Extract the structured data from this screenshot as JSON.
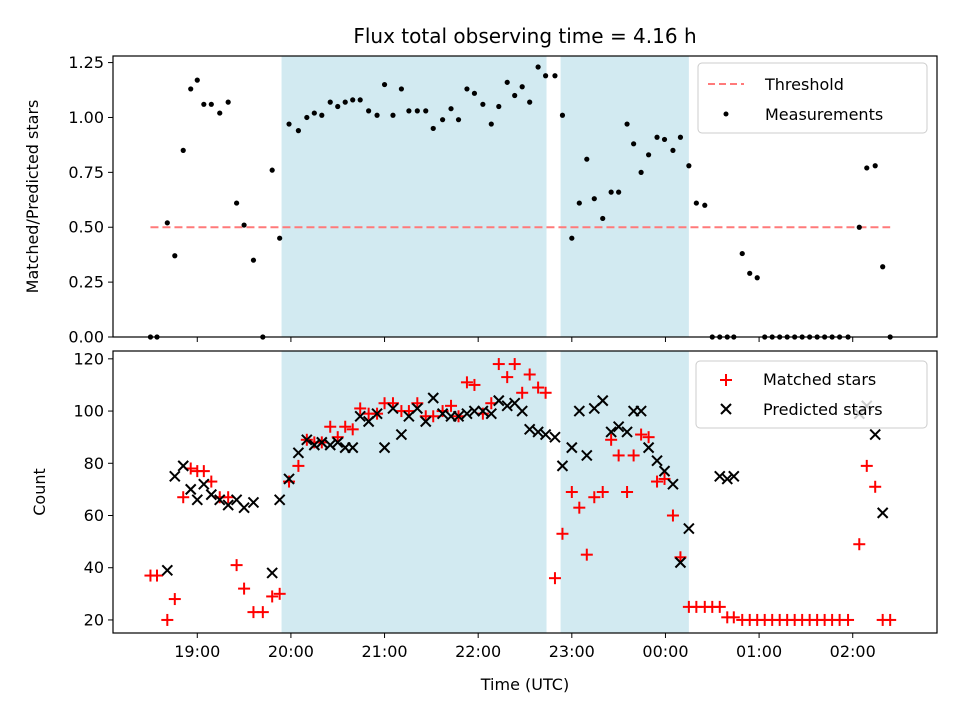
{
  "chart_data": {
    "title": "Flux total observing time = 4.16 h",
    "type": "scatter",
    "xlabel": "Time (UTC)",
    "x_unit": "hours since 18:00 UTC",
    "x_ticks": [
      1,
      2,
      3,
      4,
      5,
      6,
      7,
      8
    ],
    "x_tick_labels": [
      "19:00",
      "20:00",
      "21:00",
      "22:00",
      "23:00",
      "00:00",
      "01:00",
      "02:00"
    ],
    "xlim": [
      0.1,
      8.9
    ],
    "shaded_intervals": [
      [
        1.9,
        4.73
      ],
      [
        4.88,
        6.25
      ]
    ],
    "shade_color": "#add8e6",
    "panels": [
      {
        "ylabel": "Matched/Predicted stars",
        "ylim": [
          0,
          1.28
        ],
        "y_ticks": [
          0,
          0.25,
          0.5,
          0.75,
          1.0,
          1.25
        ],
        "y_tick_labels": [
          "0.00",
          "0.25",
          "0.50",
          "0.75",
          "1.00",
          "1.25"
        ],
        "legend": {
          "position": "top-right",
          "threshold_label": "Threshold",
          "measure_label": "Measurements"
        },
        "threshold": {
          "name": "Threshold",
          "value": 0.5,
          "x_range": [
            0.5,
            8.4
          ],
          "color": "#ff7a7a"
        },
        "series": [
          {
            "name": "Measurements",
            "marker": "dot",
            "color": "#000000",
            "x": [
              0.5,
              0.57,
              0.68,
              0.76,
              0.85,
              0.93,
              1.0,
              1.07,
              1.15,
              1.24,
              1.33,
              1.42,
              1.5,
              1.6,
              1.7,
              1.8,
              1.88,
              1.98,
              2.08,
              2.17,
              2.25,
              2.33,
              2.42,
              2.5,
              2.58,
              2.66,
              2.74,
              2.83,
              2.92,
              3.0,
              3.09,
              3.18,
              3.26,
              3.35,
              3.44,
              3.52,
              3.62,
              3.71,
              3.79,
              3.88,
              3.96,
              4.05,
              4.14,
              4.22,
              4.31,
              4.39,
              4.47,
              4.55,
              4.64,
              4.72,
              4.82,
              4.9,
              5.0,
              5.08,
              5.16,
              5.24,
              5.33,
              5.42,
              5.5,
              5.59,
              5.66,
              5.74,
              5.82,
              5.91,
              5.99,
              6.08,
              6.16,
              6.25,
              6.33,
              6.42,
              6.5,
              6.58,
              6.66,
              6.73,
              6.82,
              6.9,
              6.98,
              7.06,
              7.14,
              7.22,
              7.3,
              7.38,
              7.46,
              7.54,
              7.62,
              7.7,
              7.78,
              7.86,
              7.95,
              8.07,
              8.15,
              8.24,
              8.32,
              8.4
            ],
            "y": [
              0.0,
              0.0,
              0.52,
              0.37,
              0.85,
              1.13,
              1.17,
              1.06,
              1.06,
              1.02,
              1.07,
              0.61,
              0.51,
              0.35,
              0.0,
              0.76,
              0.45,
              0.97,
              0.94,
              1.0,
              1.02,
              1.01,
              1.07,
              1.05,
              1.07,
              1.08,
              1.08,
              1.03,
              1.01,
              1.15,
              1.01,
              1.13,
              1.03,
              1.03,
              1.03,
              0.95,
              0.99,
              1.04,
              0.99,
              1.13,
              1.11,
              1.06,
              0.97,
              1.05,
              1.16,
              1.1,
              1.14,
              1.07,
              1.23,
              1.19,
              1.19,
              1.01,
              0.45,
              0.61,
              0.81,
              0.63,
              0.54,
              0.66,
              0.66,
              0.97,
              0.88,
              0.75,
              0.83,
              0.91,
              0.9,
              0.85,
              0.91,
              0.78,
              0.61,
              0.6,
              0.0,
              0.0,
              0.0,
              0.0,
              0.38,
              0.29,
              0.27,
              0.0,
              0.0,
              0.0,
              0.0,
              0.0,
              0.0,
              0.0,
              0.0,
              0.0,
              0.0,
              0.0,
              0.0,
              0.5,
              0.77,
              0.78,
              0.32,
              0.0
            ]
          }
        ]
      },
      {
        "ylabel": "Count",
        "ylim": [
          15,
          123
        ],
        "y_ticks": [
          20,
          40,
          60,
          80,
          100,
          120
        ],
        "y_tick_labels": [
          "20",
          "40",
          "60",
          "80",
          "100",
          "120"
        ],
        "legend": {
          "position": "top-right",
          "matched_label": "Matched stars",
          "predicted_label": "Predicted stars"
        },
        "series": [
          {
            "name": "Matched stars",
            "marker": "plus",
            "color": "#ff0000",
            "x": [
              0.5,
              0.57,
              0.68,
              0.76,
              0.85,
              0.93,
              1.0,
              1.07,
              1.15,
              1.24,
              1.33,
              1.42,
              1.5,
              1.6,
              1.7,
              1.8,
              1.88,
              1.98,
              2.08,
              2.17,
              2.25,
              2.33,
              2.42,
              2.5,
              2.58,
              2.66,
              2.74,
              2.83,
              2.92,
              3.0,
              3.09,
              3.18,
              3.26,
              3.35,
              3.44,
              3.52,
              3.62,
              3.71,
              3.79,
              3.88,
              3.96,
              4.05,
              4.14,
              4.22,
              4.31,
              4.39,
              4.47,
              4.55,
              4.64,
              4.72,
              4.82,
              4.9,
              5.0,
              5.08,
              5.16,
              5.24,
              5.33,
              5.42,
              5.5,
              5.59,
              5.66,
              5.74,
              5.82,
              5.91,
              5.99,
              6.08,
              6.16,
              6.25,
              6.33,
              6.42,
              6.5,
              6.58,
              6.66,
              6.73,
              6.82,
              6.9,
              6.98,
              7.06,
              7.14,
              7.22,
              7.3,
              7.38,
              7.46,
              7.54,
              7.62,
              7.7,
              7.78,
              7.86,
              7.95,
              8.07,
              8.15,
              8.24,
              8.32,
              8.4
            ],
            "y": [
              37,
              37,
              20,
              28,
              67,
              78,
              77,
              77,
              73,
              67,
              67,
              41,
              32,
              23,
              23,
              29,
              30,
              73,
              79,
              89,
              88,
              88,
              94,
              90,
              94,
              93,
              101,
              99,
              99,
              103,
              103,
              100,
              100,
              103,
              98,
              98,
              100,
              102,
              98,
              111,
              110,
              99,
              103,
              118,
              113,
              118,
              107,
              114,
              109,
              107,
              36,
              53,
              69,
              63,
              45,
              67,
              69,
              89,
              83,
              69,
              83,
              91,
              90,
              73,
              74,
              60,
              44,
              25,
              25,
              25,
              25,
              25,
              21,
              21,
              20,
              20,
              20,
              20,
              20,
              20,
              20,
              20,
              20,
              20,
              20,
              20,
              20,
              20,
              20,
              49,
              79,
              71,
              20,
              20
            ]
          },
          {
            "name": "Predicted stars",
            "marker": "x",
            "color": "#000000",
            "x": [
              0.68,
              0.76,
              0.85,
              0.93,
              1.0,
              1.07,
              1.15,
              1.24,
              1.33,
              1.42,
              1.5,
              1.6,
              1.8,
              1.88,
              1.98,
              2.08,
              2.17,
              2.25,
              2.33,
              2.42,
              2.5,
              2.58,
              2.66,
              2.74,
              2.83,
              2.92,
              3.0,
              3.09,
              3.18,
              3.26,
              3.35,
              3.44,
              3.52,
              3.62,
              3.71,
              3.79,
              3.88,
              3.96,
              4.05,
              4.14,
              4.22,
              4.31,
              4.39,
              4.47,
              4.55,
              4.64,
              4.72,
              4.82,
              4.9,
              5.0,
              5.08,
              5.16,
              5.24,
              5.33,
              5.42,
              5.5,
              5.59,
              5.66,
              5.74,
              5.82,
              5.91,
              5.99,
              6.08,
              6.16,
              6.25,
              6.58,
              6.66,
              6.73,
              8.07,
              8.15,
              8.24,
              8.32
            ],
            "y": [
              39,
              75,
              79,
              70,
              66,
              72,
              68,
              66,
              64,
              66,
              63,
              65,
              38,
              66,
              74,
              84,
              89,
              87,
              88,
              87,
              88,
              86,
              86,
              98,
              96,
              99,
              86,
              101,
              91,
              98,
              101,
              96,
              105,
              99,
              98,
              98,
              99,
              100,
              100,
              99,
              104,
              102,
              103,
              100,
              93,
              92,
              91,
              90,
              79,
              86,
              100,
              83,
              101,
              104,
              92,
              94,
              92,
              100,
              100,
              86,
              81,
              77,
              72,
              42,
              55,
              75,
              74,
              75,
              99,
              102,
              91,
              61
            ]
          }
        ]
      }
    ]
  }
}
